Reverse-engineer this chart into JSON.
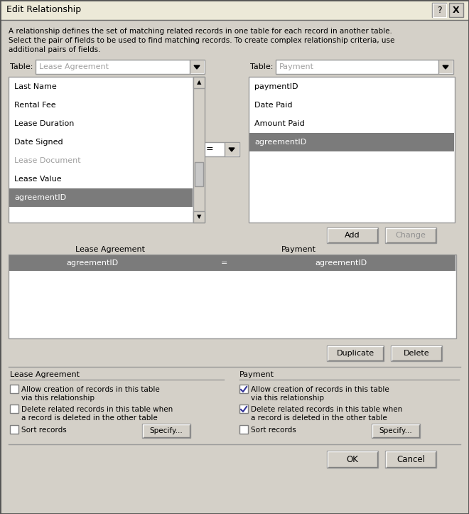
{
  "title": "Edit Relationship",
  "desc1": "A relationship defines the set of matching related records in one table for each record in another table.",
  "desc2": "Select the pair of fields to be used to find matching records. To create complex relationship criteria, use",
  "desc3": "additional pairs of fields.",
  "left_table_label": "Table:",
  "left_table_value": "Lease Agreement",
  "right_table_label": "Table:",
  "right_table_value": "Payment",
  "left_fields": [
    "Last Name",
    "Rental Fee",
    "Lease Duration",
    "Date Signed",
    "Lease Document",
    "Lease Value",
    "agreementID"
  ],
  "left_field_grayed": [
    "Lease Document"
  ],
  "left_field_selected": "agreementID",
  "right_fields": [
    "paymentID",
    "Date Paid",
    "Amount Paid",
    "agreementID"
  ],
  "right_field_selected": "agreementID",
  "operator": "=",
  "rel_left_header": "Lease Agreement",
  "rel_right_header": "Payment",
  "btn_add": "Add",
  "btn_change": "Change",
  "btn_duplicate": "Duplicate",
  "btn_delete": "Delete",
  "btn_ok": "OK",
  "btn_cancel": "Cancel",
  "left_section": "Lease Agreement",
  "right_section": "Payment",
  "lc1": "Allow creation of records in this table",
  "lc1b": "via this relationship",
  "lc2": "Delete related records in this table when",
  "lc2b": "a record is deleted in the other table",
  "lc3": "Sort records",
  "left_specify": "Specify...",
  "rc1": "Allow creation of records in this table",
  "rc1b": "via this relationship",
  "rc2": "Delete related records in this table when",
  "rc2b": "a record is deleted in the other table",
  "rc3": "Sort records",
  "right_specify": "Specify...",
  "lcheck1": false,
  "lcheck2": false,
  "lcheck3": false,
  "rcheck1": true,
  "rcheck2": true,
  "rcheck3": false,
  "bg": "#d4d0c8",
  "white": "#ffffff",
  "sel_bg": "#7b7b7b",
  "sel_fg": "#ffffff",
  "gray_text": "#a0a0a0",
  "black": "#000000",
  "btn_face": "#d4d0c8",
  "border_dark": "#808080",
  "border_light": "#ffffff",
  "titlebar_bg": "#d4d0c8",
  "inner_bg": "#ece9d8"
}
